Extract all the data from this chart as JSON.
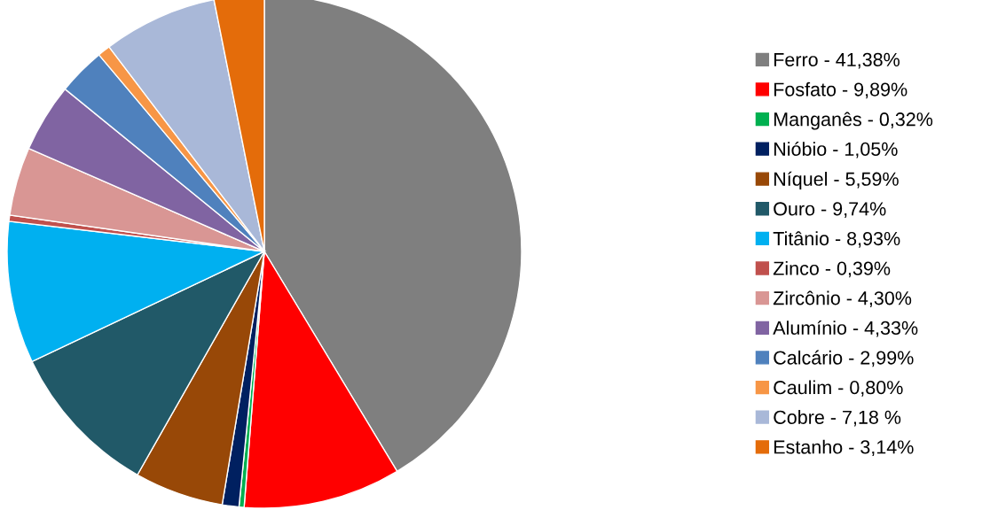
{
  "chart_data": {
    "type": "pie",
    "categories": [
      "Ferro - 41,38%",
      "Fosfato - 9,89%",
      "Manganês - 0,32%",
      "Nióbio - 1,05%",
      "Níquel - 5,59%",
      "Ouro - 9,74%",
      "Titânio - 8,93%",
      "Zinco - 0,39%",
      "Zircônio - 4,30%",
      "Alumínio - 4,33%",
      "Calcário - 2,99%",
      "Caulim - 0,80%",
      "Cobre - 7,18 %",
      "Estanho - 3,14%"
    ],
    "values": [
      41.38,
      9.89,
      0.32,
      1.05,
      5.59,
      9.74,
      8.93,
      0.39,
      4.3,
      4.33,
      2.99,
      0.8,
      7.18,
      3.14
    ],
    "colors": [
      "#7f7f7f",
      "#ff0000",
      "#00b050",
      "#002060",
      "#984807",
      "#215968",
      "#00b0f0",
      "#c0504d",
      "#d99694",
      "#8064a2",
      "#4f81bd",
      "#f79646",
      "#a9b8d8",
      "#e46c0a"
    ],
    "legend": "right"
  }
}
